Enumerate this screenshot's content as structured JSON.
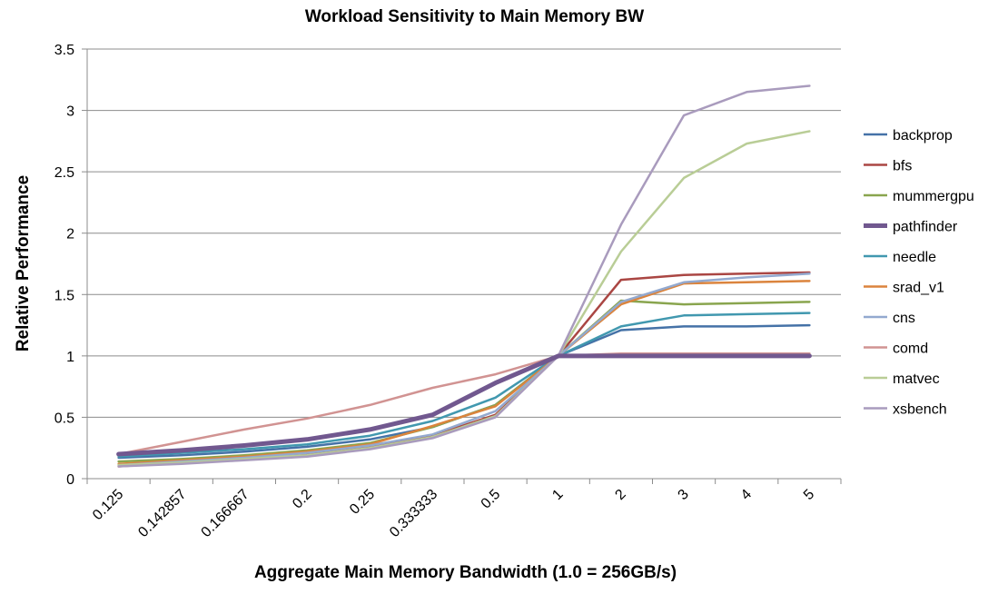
{
  "chart_data": {
    "type": "line",
    "title": "Workload Sensitivity to Main Memory BW",
    "xlabel": "Aggregate Main Memory Bandwidth (1.0 = 256GB/s)",
    "ylabel": "Relative Performance",
    "categories": [
      "0.125",
      "0.142857",
      "0.166667",
      "0.2",
      "0.25",
      "0.333333",
      "0.5",
      "1",
      "2",
      "3",
      "4",
      "5"
    ],
    "yticks": [
      "0",
      "0.5",
      "1",
      "1.5",
      "2",
      "2.5",
      "3",
      "3.5"
    ],
    "ylim": [
      0,
      3.5
    ],
    "grid": "horizontal",
    "legend_position": "right",
    "series": [
      {
        "name": "backprop",
        "color": "#4572A7",
        "width": 2.5,
        "values": [
          0.17,
          0.19,
          0.22,
          0.26,
          0.32,
          0.42,
          0.6,
          1.0,
          1.21,
          1.24,
          1.24,
          1.25
        ]
      },
      {
        "name": "bfs",
        "color": "#AA4643",
        "width": 2.5,
        "values": [
          0.1,
          0.13,
          0.16,
          0.2,
          0.26,
          0.35,
          0.52,
          1.0,
          1.62,
          1.66,
          1.67,
          1.68
        ]
      },
      {
        "name": "mummergpu",
        "color": "#89A54E",
        "width": 2.5,
        "values": [
          0.14,
          0.16,
          0.19,
          0.23,
          0.29,
          0.42,
          0.6,
          1.0,
          1.45,
          1.42,
          1.43,
          1.44
        ]
      },
      {
        "name": "pathfinder",
        "color": "#71588F",
        "width": 5,
        "values": [
          0.2,
          0.23,
          0.27,
          0.32,
          0.4,
          0.52,
          0.78,
          1.0,
          1.0,
          1.0,
          1.0,
          1.0
        ]
      },
      {
        "name": "needle",
        "color": "#4198AF",
        "width": 2.5,
        "values": [
          0.18,
          0.21,
          0.24,
          0.28,
          0.35,
          0.47,
          0.66,
          1.0,
          1.24,
          1.33,
          1.34,
          1.35
        ]
      },
      {
        "name": "srad_v1",
        "color": "#DB843D",
        "width": 2.5,
        "values": [
          0.12,
          0.15,
          0.18,
          0.22,
          0.28,
          0.43,
          0.59,
          1.0,
          1.42,
          1.59,
          1.6,
          1.61
        ]
      },
      {
        "name": "cns",
        "color": "#93A9CF",
        "width": 2.5,
        "values": [
          0.11,
          0.14,
          0.17,
          0.21,
          0.27,
          0.36,
          0.55,
          1.0,
          1.44,
          1.6,
          1.64,
          1.67
        ]
      },
      {
        "name": "comd",
        "color": "#D19392",
        "width": 2.5,
        "values": [
          0.2,
          0.3,
          0.4,
          0.49,
          0.6,
          0.74,
          0.85,
          1.0,
          1.02,
          1.02,
          1.02,
          1.02
        ]
      },
      {
        "name": "matvec",
        "color": "#B9CD96",
        "width": 2.5,
        "values": [
          0.11,
          0.13,
          0.16,
          0.19,
          0.25,
          0.34,
          0.51,
          1.0,
          1.85,
          2.45,
          2.73,
          2.83
        ]
      },
      {
        "name": "xsbench",
        "color": "#A99BBD",
        "width": 2.5,
        "values": [
          0.1,
          0.12,
          0.15,
          0.18,
          0.24,
          0.33,
          0.5,
          1.0,
          2.07,
          2.96,
          3.15,
          3.2
        ]
      }
    ]
  }
}
